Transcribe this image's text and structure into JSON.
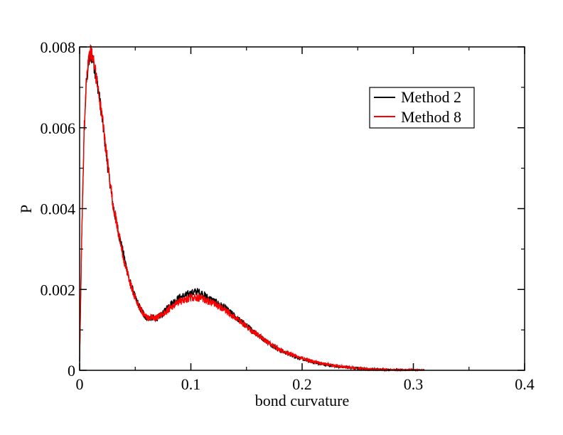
{
  "chart_data": {
    "type": "line",
    "title": "",
    "xlabel": "bond curvature",
    "ylabel": "P",
    "xlim": [
      0,
      0.4
    ],
    "ylim": [
      0,
      0.008
    ],
    "xticks": [
      0,
      0.1,
      0.2,
      0.3,
      0.4
    ],
    "xtick_labels": [
      "0",
      "0.1",
      "0.2",
      "0.3",
      "0.4"
    ],
    "yticks": [
      0,
      0.002,
      0.004,
      0.006,
      0.008
    ],
    "ytick_labels": [
      "0",
      "0.002",
      "0.004",
      "0.006",
      "0.008"
    ],
    "grid": false,
    "legend_position": "top-right",
    "series": [
      {
        "name": "Method 2",
        "color": "#000000",
        "x": [
          0.0,
          0.002,
          0.004,
          0.006,
          0.008,
          0.01,
          0.012,
          0.014,
          0.016,
          0.02,
          0.025,
          0.03,
          0.035,
          0.04,
          0.045,
          0.05,
          0.055,
          0.06,
          0.065,
          0.07,
          0.075,
          0.08,
          0.085,
          0.09,
          0.095,
          0.1,
          0.105,
          0.11,
          0.115,
          0.12,
          0.13,
          0.14,
          0.15,
          0.16,
          0.17,
          0.18,
          0.19,
          0.2,
          0.21,
          0.22,
          0.23,
          0.24,
          0.25,
          0.26,
          0.27,
          0.28,
          0.29,
          0.3,
          0.31
        ],
        "y": [
          0.0002,
          0.0034,
          0.0058,
          0.0071,
          0.0076,
          0.0078,
          0.0077,
          0.0074,
          0.0071,
          0.0063,
          0.0051,
          0.0041,
          0.0034,
          0.0028,
          0.0022,
          0.0018,
          0.0015,
          0.0013,
          0.0013,
          0.0013,
          0.0014,
          0.0016,
          0.0017,
          0.0018,
          0.00185,
          0.0019,
          0.00195,
          0.0019,
          0.0018,
          0.00172,
          0.00155,
          0.00132,
          0.0011,
          0.00088,
          0.00068,
          0.0005,
          0.00038,
          0.00028,
          0.0002,
          0.00014,
          0.0001,
          7e-05,
          5e-05,
          3e-05,
          2e-05,
          1e-05,
          5e-06,
          2e-06,
          0.0
        ]
      },
      {
        "name": "Method 8",
        "color": "#ff0000",
        "x": [
          0.0,
          0.002,
          0.004,
          0.006,
          0.008,
          0.01,
          0.012,
          0.014,
          0.016,
          0.02,
          0.025,
          0.03,
          0.035,
          0.04,
          0.045,
          0.05,
          0.055,
          0.06,
          0.065,
          0.07,
          0.075,
          0.08,
          0.085,
          0.09,
          0.095,
          0.1,
          0.105,
          0.11,
          0.115,
          0.12,
          0.13,
          0.14,
          0.15,
          0.16,
          0.17,
          0.18,
          0.19,
          0.2,
          0.21,
          0.22,
          0.23,
          0.24,
          0.25,
          0.26,
          0.27,
          0.28,
          0.29,
          0.3,
          0.31
        ],
        "y": [
          0.0002,
          0.0035,
          0.0059,
          0.0072,
          0.0077,
          0.0079,
          0.0077,
          0.0074,
          0.0071,
          0.0063,
          0.0052,
          0.0041,
          0.0034,
          0.0027,
          0.0022,
          0.0018,
          0.0015,
          0.0013,
          0.0013,
          0.0013,
          0.0014,
          0.0015,
          0.0016,
          0.0017,
          0.00175,
          0.0018,
          0.0018,
          0.00178,
          0.00172,
          0.00165,
          0.0015,
          0.0013,
          0.00108,
          0.00088,
          0.00068,
          0.0005,
          0.0004,
          0.0003,
          0.00022,
          0.00016,
          0.00011,
          8e-05,
          5e-05,
          3e-05,
          2e-05,
          1e-05,
          6e-06,
          3e-06,
          0.0
        ]
      }
    ]
  }
}
